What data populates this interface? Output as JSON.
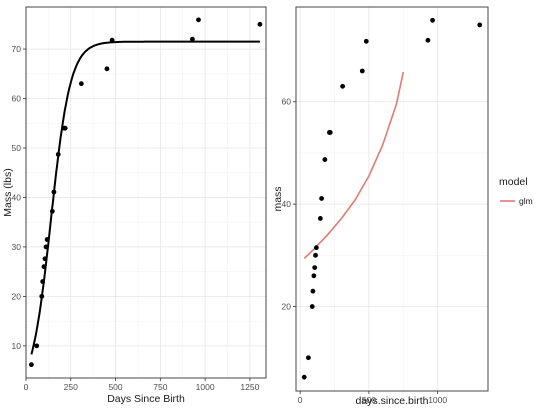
{
  "chart_data": [
    {
      "type": "scatter",
      "xlabel": "Days Since Birth",
      "ylabel": "Mass (lbs)",
      "xlim": [
        0,
        1340
      ],
      "ylim": [
        3.5,
        78.5
      ],
      "xticks": [
        {
          "v": 0,
          "label": "0"
        },
        {
          "v": 250,
          "label": "250"
        },
        {
          "v": 500,
          "label": "500"
        },
        {
          "v": 750,
          "label": "750"
        },
        {
          "v": 1000,
          "label": "1000"
        },
        {
          "v": 1250,
          "label": "1250"
        }
      ],
      "yticks": [
        {
          "v": 10,
          "label": "10"
        },
        {
          "v": 20,
          "label": "20"
        },
        {
          "v": 30,
          "label": "30"
        },
        {
          "v": 40,
          "label": "40"
        },
        {
          "v": 50,
          "label": "50"
        },
        {
          "v": 60,
          "label": "60"
        },
        {
          "v": 70,
          "label": "70"
        }
      ],
      "grid": true,
      "border": true,
      "points": [
        {
          "x": 30,
          "y": 6.2
        },
        {
          "x": 60,
          "y": 10
        },
        {
          "x": 88,
          "y": 20
        },
        {
          "x": 93,
          "y": 23
        },
        {
          "x": 100,
          "y": 26
        },
        {
          "x": 106,
          "y": 27.6
        },
        {
          "x": 112,
          "y": 30
        },
        {
          "x": 118,
          "y": 31.5
        },
        {
          "x": 147,
          "y": 37.2
        },
        {
          "x": 156,
          "y": 41.1
        },
        {
          "x": 180,
          "y": 48.7
        },
        {
          "x": 213,
          "y": 54
        },
        {
          "x": 219,
          "y": 54
        },
        {
          "x": 309,
          "y": 63
        },
        {
          "x": 452,
          "y": 66
        },
        {
          "x": 481,
          "y": 71.8
        },
        {
          "x": 929,
          "y": 72
        },
        {
          "x": 963,
          "y": 75.9
        },
        {
          "x": 1306,
          "y": 75
        }
      ],
      "series": [
        {
          "style": "line",
          "color": "#000000",
          "curve": "logistic",
          "asymptote": 71.5,
          "rate": 0.0185,
          "midpoint": 140,
          "x_from": 30,
          "x_to": 1306
        }
      ]
    },
    {
      "type": "scatter",
      "xlabel": "days.since.birth",
      "ylabel": "mass",
      "xlim": [
        -30,
        1366
      ],
      "ylim": [
        3.5,
        78.5
      ],
      "xticks": [
        {
          "v": 0,
          "label": "0"
        },
        {
          "v": 500,
          "label": "500"
        },
        {
          "v": 1000,
          "label": "1000"
        }
      ],
      "yticks": [
        {
          "v": 20,
          "label": "20"
        },
        {
          "v": 40,
          "label": "40"
        },
        {
          "v": 60,
          "label": "60"
        }
      ],
      "grid": true,
      "border": true,
      "points": [
        {
          "x": 30,
          "y": 6.2
        },
        {
          "x": 60,
          "y": 10
        },
        {
          "x": 88,
          "y": 20
        },
        {
          "x": 93,
          "y": 23
        },
        {
          "x": 100,
          "y": 26
        },
        {
          "x": 106,
          "y": 27.6
        },
        {
          "x": 112,
          "y": 30
        },
        {
          "x": 118,
          "y": 31.5
        },
        {
          "x": 147,
          "y": 37.2
        },
        {
          "x": 156,
          "y": 41.1
        },
        {
          "x": 180,
          "y": 48.7
        },
        {
          "x": 213,
          "y": 54
        },
        {
          "x": 219,
          "y": 54
        },
        {
          "x": 309,
          "y": 63
        },
        {
          "x": 452,
          "y": 66
        },
        {
          "x": 481,
          "y": 71.8
        },
        {
          "x": 929,
          "y": 72
        },
        {
          "x": 963,
          "y": 75.9
        },
        {
          "x": 1306,
          "y": 75
        }
      ],
      "series": [
        {
          "name": "glm",
          "style": "line",
          "color": "#e07b72",
          "curve": "exponential",
          "x": [
            30,
            100,
            200,
            300,
            400,
            500,
            600,
            700,
            750
          ],
          "y": [
            29.4,
            31.2,
            34.0,
            37.2,
            40.8,
            45.5,
            51.5,
            59.5,
            65.8
          ]
        }
      ],
      "legend": {
        "title": "model",
        "position": "right",
        "entries": [
          {
            "label": "glm",
            "color": "#e07b72"
          }
        ]
      }
    }
  ]
}
